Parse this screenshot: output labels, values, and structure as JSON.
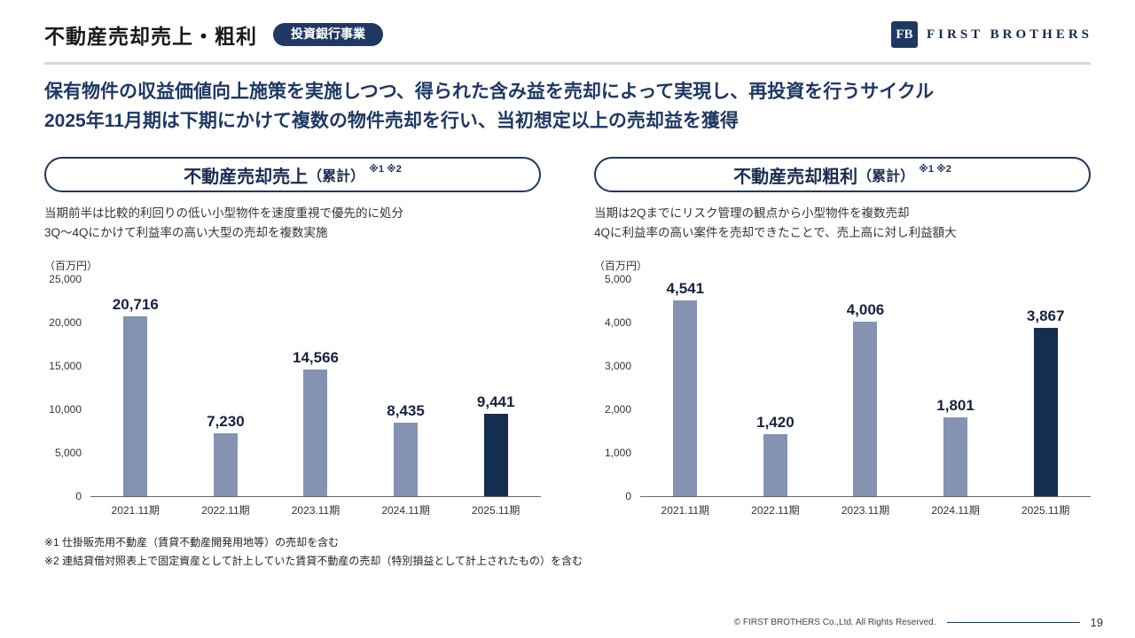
{
  "page": {
    "title": "不動産売却売上・粗利",
    "badge": "投資銀行事業",
    "logo": {
      "monogram": "FB",
      "name": "FIRST BROTHERS"
    },
    "message_line1": "保有物件の収益価値向上施策を実施しつつ、得られた含み益を売却によって実現し、再投資を行うサイクル",
    "message_line2": "2025年11月期は下期にかけて複数の物件売却を行い、当初想定以上の売却益を獲得",
    "footnote1": "※1 仕掛販売用不動産（賃貸不動産開発用地等）の売却を含む",
    "footnote2": "※2 連結貸借対照表上で固定資産として計上していた賃貸不動産の売却（特別損益として計上されたもの）を含む",
    "footer_copyright": "© FIRST BROTHERS Co.,Ltd. All Rights Reserved.",
    "page_number": "19"
  },
  "colors": {
    "navy": "#1f3864",
    "bar": "#8393b1",
    "bar_highlight": "#132e4f"
  },
  "chart_data": [
    {
      "type": "bar",
      "title": "不動産売却売上",
      "title_suffix": "（累計）",
      "title_refs": "※1 ※2",
      "notes": [
        "当期前半は比較的利回りの低い小型物件を速度重視で優先的に処分",
        "3Q〜4Qにかけて利益率の高い大型の売却を複数実施"
      ],
      "unit": "（百万円）",
      "categories": [
        "2021.11期",
        "2022.11期",
        "2023.11期",
        "2024.11期",
        "2025.11期"
      ],
      "values": [
        20716,
        7230,
        14566,
        8435,
        9441
      ],
      "labels": [
        "20,716",
        "7,230",
        "14,566",
        "8,435",
        "9,441"
      ],
      "ylim": [
        0,
        25000
      ],
      "yticks": [
        0,
        5000,
        10000,
        15000,
        20000,
        25000
      ],
      "ytick_labels": [
        "0",
        "5,000",
        "10,000",
        "15,000",
        "20,000",
        "25,000"
      ],
      "highlight_index": 4,
      "legend": "none",
      "grid": false
    },
    {
      "type": "bar",
      "title": "不動産売却粗利",
      "title_suffix": "（累計）",
      "title_refs": "※1 ※2",
      "notes": [
        "当期は2Qまでにリスク管理の観点から小型物件を複数売却",
        "4Qに利益率の高い案件を売却できたことで、売上高に対し利益額大"
      ],
      "unit": "（百万円）",
      "categories": [
        "2021.11期",
        "2022.11期",
        "2023.11期",
        "2024.11期",
        "2025.11期"
      ],
      "values": [
        4541,
        1420,
        4006,
        1801,
        3867
      ],
      "labels": [
        "4,541",
        "1,420",
        "4,006",
        "1,801",
        "3,867"
      ],
      "ylim": [
        0,
        5000
      ],
      "yticks": [
        0,
        1000,
        2000,
        3000,
        4000,
        5000
      ],
      "ytick_labels": [
        "0",
        "1,000",
        "2,000",
        "3,000",
        "4,000",
        "5,000"
      ],
      "highlight_index": 4,
      "legend": "none",
      "grid": false
    }
  ]
}
